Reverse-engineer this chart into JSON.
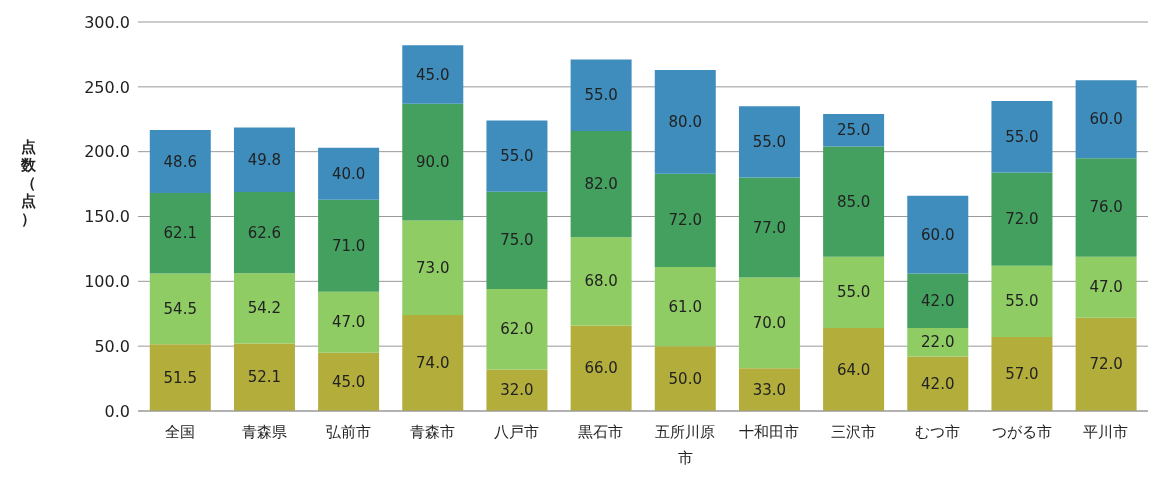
{
  "chart_data": {
    "type": "bar",
    "stacked": true,
    "ylabel": "点数（点）",
    "categories": [
      "全国",
      "青森県",
      "弘前市",
      "青森市",
      "八戸市",
      "黒石市",
      "五所川原市",
      "十和田市",
      "三沢市",
      "むつ市",
      "つがる市",
      "平川市"
    ],
    "series": [
      {
        "color": "#b3ad3c",
        "values": [
          51.5,
          52.1,
          45,
          74,
          32,
          66,
          50,
          33,
          64,
          42,
          57,
          72
        ],
        "value_labels": [
          "51.5",
          "52.1",
          "45.0",
          "74.0",
          "32.0",
          "66.0",
          "50.0",
          "33.0",
          "64.0",
          "42.0",
          "57.0",
          "72.0"
        ]
      },
      {
        "color": "#8fcc63",
        "values": [
          54.5,
          54.2,
          47,
          73,
          62,
          68,
          61,
          70,
          55,
          22,
          55,
          47
        ],
        "value_labels": [
          "54.5",
          "54.2",
          "47.0",
          "73.0",
          "62.0",
          "68.0",
          "61.0",
          "70.0",
          "55.0",
          "22.0",
          "55.0",
          "47.0"
        ]
      },
      {
        "color": "#44a05e",
        "values": [
          62.1,
          62.6,
          71,
          90,
          75,
          82,
          72,
          77,
          85,
          42,
          72,
          76
        ],
        "value_labels": [
          "62.1",
          "62.6",
          "71.0",
          "90.0",
          "75.0",
          "82.0",
          "72.0",
          "77.0",
          "85.0",
          "42.0",
          "72.0",
          "76.0"
        ]
      },
      {
        "color": "#3e8dbd",
        "values": [
          48.6,
          49.8,
          40,
          45,
          55,
          55,
          80,
          55,
          25,
          60,
          55,
          60
        ],
        "value_labels": [
          "48.6",
          "49.8",
          "40.0",
          "45.0",
          "55.0",
          "55.0",
          "80.0",
          "55.0",
          "25.0",
          "60.0",
          "55.0",
          "60.0"
        ]
      }
    ],
    "ylim": [
      0,
      300
    ],
    "yticks": [
      {
        "value": 0,
        "label": "0.0"
      },
      {
        "value": 50,
        "label": "50.0"
      },
      {
        "value": 100,
        "label": "100.0"
      },
      {
        "value": 150,
        "label": "150.0"
      },
      {
        "value": 200,
        "label": "200.0"
      },
      {
        "value": 250,
        "label": "250.0"
      },
      {
        "value": 300,
        "label": "300.0"
      }
    ],
    "grid": "y",
    "legend": false
  }
}
